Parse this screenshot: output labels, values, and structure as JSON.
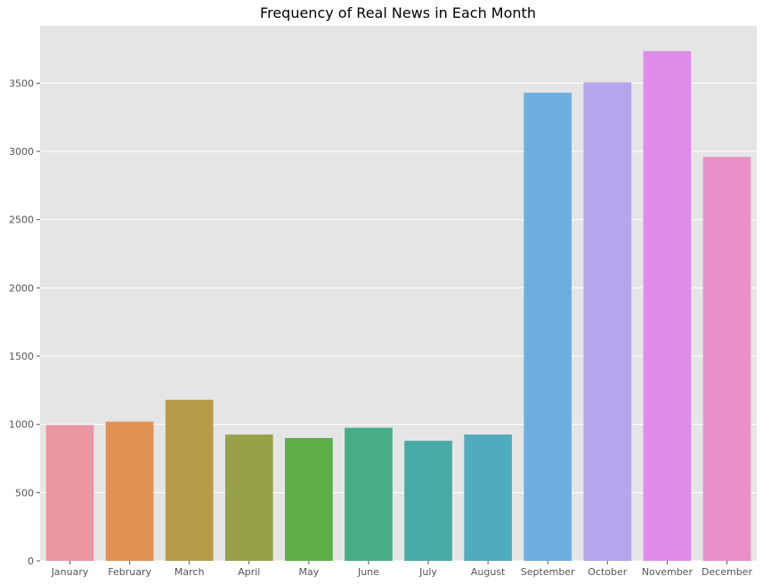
{
  "chart_data": {
    "type": "bar",
    "title": "Frequency of Real News in Each Month",
    "xlabel": "",
    "ylabel": "",
    "categories": [
      "January",
      "February",
      "March",
      "April",
      "May",
      "June",
      "July",
      "August",
      "September",
      "October",
      "November",
      "December"
    ],
    "values": [
      995,
      1020,
      1180,
      925,
      900,
      975,
      880,
      925,
      3430,
      3505,
      3735,
      2960
    ],
    "colors": [
      "#ea96a3",
      "#e19153",
      "#b89b49",
      "#98a148",
      "#5eae48",
      "#47ad86",
      "#48aaa4",
      "#4eacbe",
      "#6daee1",
      "#b5a5ec",
      "#df8ce9",
      "#e890c7"
    ],
    "ylim": [
      0,
      3920
    ],
    "yticks": [
      0,
      500,
      1000,
      1500,
      2000,
      2500,
      3000,
      3500
    ],
    "grid": true,
    "plot_background": "#e5e5e5",
    "legend": "none"
  }
}
